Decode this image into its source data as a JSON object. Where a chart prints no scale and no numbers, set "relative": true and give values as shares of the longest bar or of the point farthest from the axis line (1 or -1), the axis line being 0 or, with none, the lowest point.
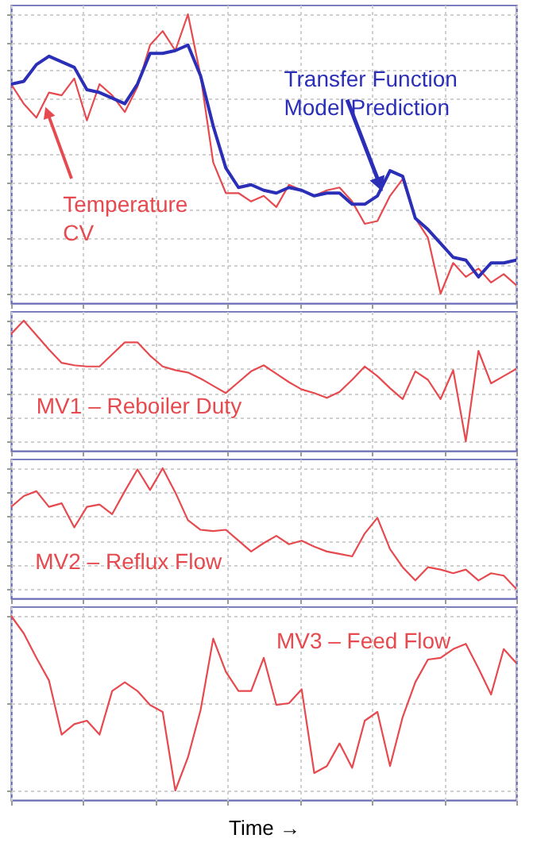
{
  "chart_data": [
    {
      "type": "line",
      "relative": true,
      "grid": true,
      "tick_labels": false,
      "categories": [
        null,
        null,
        null,
        null,
        null,
        null,
        null,
        null,
        null,
        null,
        null,
        null,
        null,
        null,
        null,
        null,
        null,
        null,
        null,
        null,
        null,
        null,
        null,
        null,
        null,
        null,
        null,
        null,
        null,
        null,
        null,
        null,
        null,
        null,
        null,
        null,
        null,
        null,
        null,
        null,
        null
      ],
      "series": [
        {
          "name": "Temperature CV",
          "color": "#e64a4f",
          "values": [
            0.75,
            0.68,
            0.63,
            0.72,
            0.71,
            0.77,
            0.62,
            0.75,
            0.71,
            0.65,
            0.74,
            0.89,
            0.94,
            0.87,
            1,
            0.78,
            0.47,
            0.36,
            0.36,
            0.33,
            0.35,
            0.31,
            0.39,
            0.37,
            0.35,
            0.37,
            0.38,
            0.33,
            0.25,
            0.26,
            0.35,
            0.41,
            0.27,
            0.2,
            0,
            0.11,
            0.06,
            0.09,
            0.04,
            0.07,
            0.03
          ]
        },
        {
          "name": "Transfer Function Model Prediction",
          "color": "#2b2fb8",
          "values": [
            0.75,
            0.76,
            0.82,
            0.85,
            0.83,
            0.81,
            0.73,
            0.72,
            0.7,
            0.68,
            0.75,
            0.86,
            0.86,
            0.87,
            0.89,
            0.78,
            0.6,
            0.45,
            0.38,
            0.39,
            0.37,
            0.36,
            0.38,
            0.37,
            0.35,
            0.36,
            0.36,
            0.32,
            0.32,
            0.35,
            0.44,
            0.42,
            0.27,
            0.23,
            0.18,
            0.13,
            0.12,
            0.06,
            0.11,
            0.11,
            0.12
          ]
        }
      ]
    },
    {
      "type": "line",
      "relative": true,
      "grid": true,
      "tick_labels": false,
      "categories": [
        null,
        null,
        null,
        null,
        null,
        null,
        null,
        null,
        null,
        null,
        null,
        null,
        null,
        null,
        null,
        null,
        null,
        null,
        null,
        null,
        null,
        null,
        null,
        null,
        null,
        null,
        null,
        null,
        null,
        null,
        null,
        null,
        null,
        null,
        null,
        null,
        null,
        null,
        null,
        null,
        null
      ],
      "series": [
        {
          "name": "MV1 – Reboiler Duty",
          "color": "#e64a4f",
          "values": [
            0.89,
            1,
            0.88,
            0.76,
            0.65,
            0.63,
            0.62,
            0.62,
            0.72,
            0.82,
            0.82,
            0.71,
            0.62,
            0.59,
            0.57,
            0.52,
            0.46,
            0.4,
            0.49,
            0.58,
            0.63,
            0.56,
            0.49,
            0.43,
            0.4,
            0.36,
            0.41,
            0.51,
            0.62,
            0.54,
            0.44,
            0.35,
            0.58,
            0.51,
            0.35,
            0.59,
            0,
            0.75,
            0.48,
            0.54,
            0.6
          ]
        }
      ]
    },
    {
      "type": "line",
      "relative": true,
      "grid": true,
      "tick_labels": false,
      "categories": [
        null,
        null,
        null,
        null,
        null,
        null,
        null,
        null,
        null,
        null,
        null,
        null,
        null,
        null,
        null,
        null,
        null,
        null,
        null,
        null,
        null,
        null,
        null,
        null,
        null,
        null,
        null,
        null,
        null,
        null,
        null,
        null,
        null,
        null,
        null,
        null,
        null,
        null,
        null,
        null,
        null
      ],
      "series": [
        {
          "name": "MV2 – Reflux Flow",
          "color": "#e64a4f",
          "values": [
            0.68,
            0.77,
            0.81,
            0.68,
            0.71,
            0.51,
            0.68,
            0.7,
            0.62,
            0.81,
            0.99,
            0.82,
            1,
            0.8,
            0.57,
            0.49,
            0.48,
            0.49,
            0.4,
            0.31,
            0.38,
            0.44,
            0.37,
            0.4,
            0.35,
            0.31,
            0.29,
            0.27,
            0.46,
            0.59,
            0.33,
            0.18,
            0.07,
            0.18,
            0.16,
            0.13,
            0.16,
            0.07,
            0.13,
            0.11,
            0
          ]
        }
      ]
    },
    {
      "type": "line",
      "relative": true,
      "grid": true,
      "tick_labels": false,
      "xlabel": "Time →",
      "categories": [
        null,
        null,
        null,
        null,
        null,
        null,
        null,
        null,
        null,
        null,
        null,
        null,
        null,
        null,
        null,
        null,
        null,
        null,
        null,
        null,
        null,
        null,
        null,
        null,
        null,
        null,
        null,
        null,
        null,
        null,
        null,
        null,
        null,
        null,
        null,
        null,
        null,
        null,
        null,
        null,
        null
      ],
      "series": [
        {
          "name": "MV3 – Feed Flow",
          "color": "#e64a4f",
          "values": [
            1,
            0.9,
            0.76,
            0.63,
            0.32,
            0.38,
            0.4,
            0.32,
            0.57,
            0.62,
            0.57,
            0.49,
            0.45,
            0,
            0.19,
            0.46,
            0.87,
            0.68,
            0.57,
            0.57,
            0.76,
            0.49,
            0.5,
            0.58,
            0.1,
            0.14,
            0.27,
            0.13,
            0.4,
            0.45,
            0.14,
            0.42,
            0.62,
            0.75,
            0.76,
            0.81,
            0.84,
            0.7,
            0.55,
            0.81,
            0.73
          ]
        }
      ]
    }
  ]
}
